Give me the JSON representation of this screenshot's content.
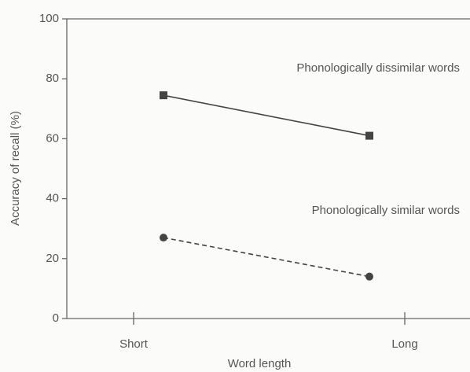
{
  "chart_data": {
    "type": "line",
    "xlabel": "Word length",
    "ylabel": "Accuracy of recall (%)",
    "categories": [
      "Short",
      "Long"
    ],
    "series": [
      {
        "name": "Phonologically dissimilar words",
        "color": "#444444",
        "marker": "square",
        "dashed": false,
        "values": [
          74.5,
          61
        ]
      },
      {
        "name": "Phonologically similar words",
        "color": "#444444",
        "marker": "circle",
        "dashed": true,
        "values": [
          27,
          14
        ]
      }
    ],
    "ylim": [
      0,
      100
    ],
    "yticks": [
      0,
      20,
      40,
      60,
      80,
      100
    ],
    "grid": false
  }
}
